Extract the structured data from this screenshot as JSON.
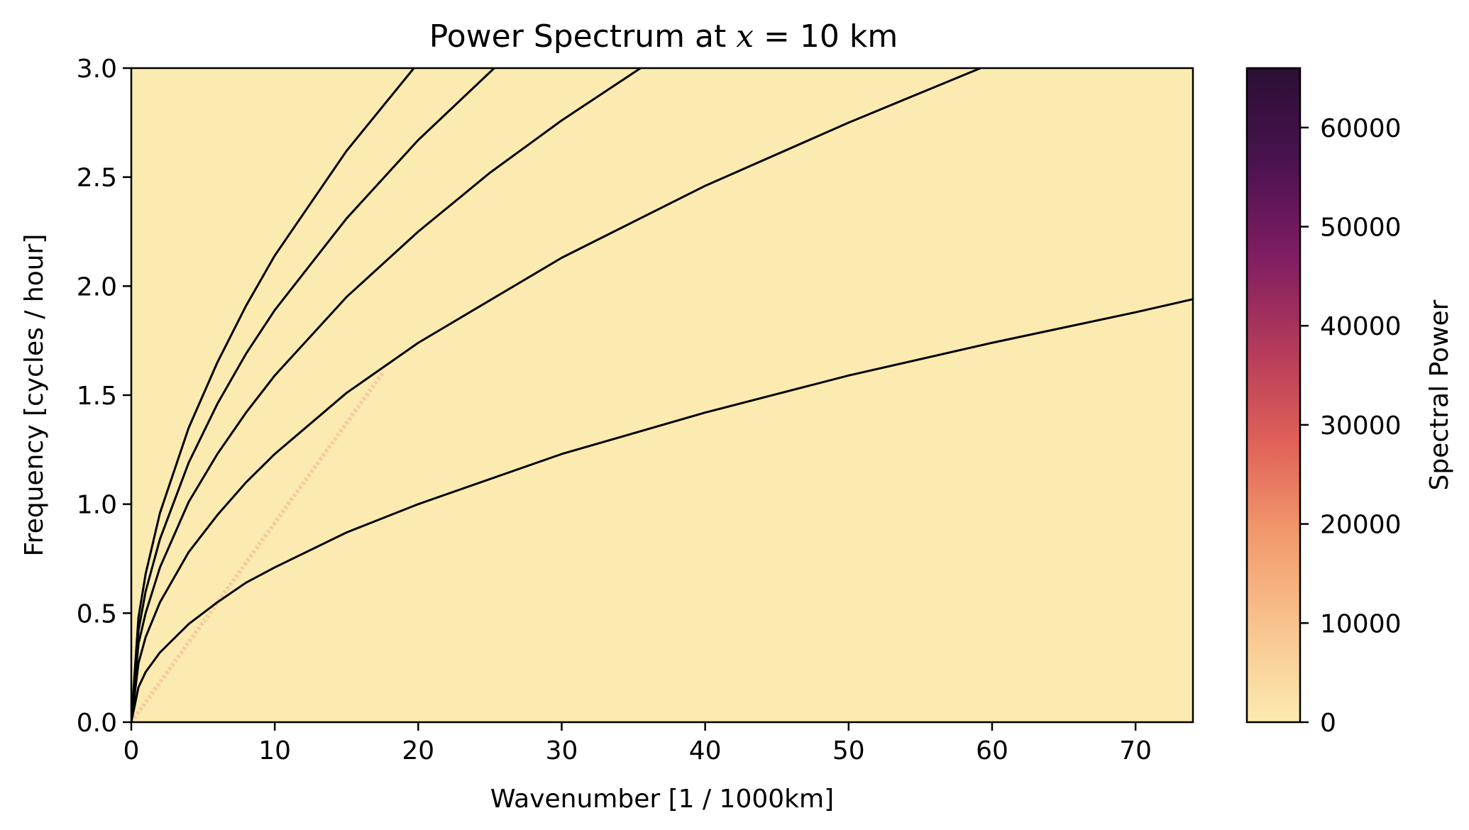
{
  "chart_data": {
    "type": "heatmap",
    "title_prefix": "Power Spectrum at ",
    "title_var": "x",
    "title_suffix": " = 10 km",
    "xlabel": "Wavenumber [1 / 1000km]",
    "ylabel": "Frequency [cycles / hour]",
    "xlim": [
      0,
      74
    ],
    "ylim": [
      0,
      3.0
    ],
    "xticks": [
      0,
      10,
      20,
      30,
      40,
      50,
      60,
      70
    ],
    "yticks": [
      "0.0",
      "0.5",
      "1.0",
      "1.5",
      "2.0",
      "2.5",
      "3.0"
    ],
    "background_color": "#fcebb0",
    "colorbar": {
      "label": "Spectral Power",
      "min": 0,
      "max": 66000,
      "ticks": [
        0,
        10000,
        20000,
        30000,
        40000,
        50000,
        60000
      ],
      "colors": [
        "#fcebb0",
        "#f8c48f",
        "#f29a6c",
        "#e06158",
        "#b33a5a",
        "#7f1d63",
        "#4a1250",
        "#2b0f33"
      ]
    },
    "ridge": {
      "description_points": [
        [
          0,
          0
        ],
        [
          17.5,
          1.6
        ]
      ],
      "color": "#f6c9a0"
    },
    "series": [
      {
        "x": [
          0,
          0.5,
          1,
          2,
          4,
          6,
          8,
          10,
          15,
          20,
          30,
          40,
          50,
          60,
          70,
          74
        ],
        "y": [
          0,
          0.16,
          0.23,
          0.32,
          0.45,
          0.55,
          0.64,
          0.71,
          0.87,
          1.0,
          1.23,
          1.42,
          1.59,
          1.74,
          1.88,
          1.94
        ]
      },
      {
        "x": [
          0,
          0.5,
          1,
          2,
          4,
          6,
          8,
          10,
          15,
          20,
          30,
          40,
          50,
          59.2
        ],
        "y": [
          0,
          0.27,
          0.39,
          0.55,
          0.78,
          0.95,
          1.1,
          1.23,
          1.51,
          1.74,
          2.13,
          2.46,
          2.75,
          3.0
        ]
      },
      {
        "x": [
          0,
          0.5,
          1,
          2,
          4,
          6,
          8,
          10,
          15,
          20,
          25,
          30,
          35.5
        ],
        "y": [
          0,
          0.36,
          0.5,
          0.71,
          1.01,
          1.23,
          1.42,
          1.59,
          1.95,
          2.25,
          2.52,
          2.76,
          3.0
        ]
      },
      {
        "x": [
          0,
          0.5,
          1,
          2,
          4,
          6,
          8,
          10,
          15,
          20,
          25.3
        ],
        "y": [
          0,
          0.42,
          0.6,
          0.84,
          1.19,
          1.46,
          1.69,
          1.89,
          2.31,
          2.67,
          3.0
        ]
      },
      {
        "x": [
          0,
          0.5,
          1,
          2,
          4,
          6,
          8,
          10,
          15,
          19.7
        ],
        "y": [
          0,
          0.48,
          0.68,
          0.96,
          1.35,
          1.65,
          1.91,
          2.14,
          2.62,
          3.0
        ]
      }
    ]
  }
}
